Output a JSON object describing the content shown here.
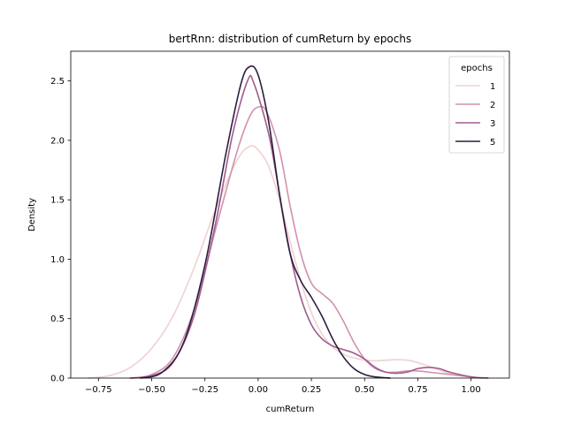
{
  "chart_data": {
    "type": "line",
    "title": "bertRnn: distribution of cumReturn by epochs",
    "xlabel": "cumReturn",
    "ylabel": "Density",
    "xlim": [
      -0.88,
      1.18
    ],
    "ylim": [
      0,
      2.75
    ],
    "xticks": [
      -0.75,
      -0.5,
      -0.25,
      0.0,
      0.25,
      0.5,
      0.75,
      1.0
    ],
    "xtick_labels": [
      "−0.75",
      "−0.50",
      "−0.25",
      "0.00",
      "0.25",
      "0.50",
      "0.75",
      "1.00"
    ],
    "yticks": [
      0.0,
      0.5,
      1.0,
      1.5,
      2.0,
      2.5
    ],
    "ytick_labels": [
      "0.0",
      "0.5",
      "1.0",
      "1.5",
      "2.0",
      "2.5"
    ],
    "grid": false,
    "legend": {
      "title": "epochs",
      "position": "top-right"
    },
    "series": [
      {
        "name": "1",
        "color": "#efd1d1",
        "points": [
          [
            -0.8,
            0.0
          ],
          [
            -0.7,
            0.02
          ],
          [
            -0.6,
            0.09
          ],
          [
            -0.5,
            0.25
          ],
          [
            -0.4,
            0.52
          ],
          [
            -0.3,
            0.93
          ],
          [
            -0.2,
            1.42
          ],
          [
            -0.1,
            1.83
          ],
          [
            -0.04,
            1.95
          ],
          [
            0.0,
            1.92
          ],
          [
            0.05,
            1.78
          ],
          [
            0.1,
            1.5
          ],
          [
            0.15,
            1.15
          ],
          [
            0.2,
            0.82
          ],
          [
            0.25,
            0.55
          ],
          [
            0.3,
            0.37
          ],
          [
            0.35,
            0.26
          ],
          [
            0.4,
            0.2
          ],
          [
            0.45,
            0.17
          ],
          [
            0.5,
            0.15
          ],
          [
            0.55,
            0.145
          ],
          [
            0.6,
            0.15
          ],
          [
            0.65,
            0.155
          ],
          [
            0.7,
            0.15
          ],
          [
            0.75,
            0.13
          ],
          [
            0.8,
            0.1
          ],
          [
            0.9,
            0.04
          ],
          [
            1.0,
            0.01
          ],
          [
            1.08,
            0.0
          ]
        ]
      },
      {
        "name": "2",
        "color": "#d291af",
        "points": [
          [
            -0.6,
            0.0
          ],
          [
            -0.5,
            0.03
          ],
          [
            -0.4,
            0.17
          ],
          [
            -0.3,
            0.58
          ],
          [
            -0.2,
            1.25
          ],
          [
            -0.1,
            1.9
          ],
          [
            -0.04,
            2.2
          ],
          [
            0.0,
            2.28
          ],
          [
            0.04,
            2.24
          ],
          [
            0.1,
            1.92
          ],
          [
            0.15,
            1.45
          ],
          [
            0.2,
            1.05
          ],
          [
            0.25,
            0.8
          ],
          [
            0.3,
            0.71
          ],
          [
            0.35,
            0.63
          ],
          [
            0.4,
            0.48
          ],
          [
            0.45,
            0.3
          ],
          [
            0.5,
            0.16
          ],
          [
            0.55,
            0.08
          ],
          [
            0.6,
            0.05
          ],
          [
            0.65,
            0.05
          ],
          [
            0.7,
            0.06
          ],
          [
            0.75,
            0.06
          ],
          [
            0.8,
            0.05
          ],
          [
            0.9,
            0.03
          ],
          [
            1.0,
            0.01
          ],
          [
            1.05,
            0.0
          ]
        ]
      },
      {
        "name": "3",
        "color": "#a15b8e",
        "points": [
          [
            -0.6,
            0.0
          ],
          [
            -0.5,
            0.02
          ],
          [
            -0.4,
            0.13
          ],
          [
            -0.3,
            0.53
          ],
          [
            -0.2,
            1.3
          ],
          [
            -0.12,
            2.05
          ],
          [
            -0.05,
            2.5
          ],
          [
            -0.02,
            2.48
          ],
          [
            0.05,
            2.05
          ],
          [
            0.1,
            1.55
          ],
          [
            0.15,
            1.05
          ],
          [
            0.2,
            0.68
          ],
          [
            0.25,
            0.45
          ],
          [
            0.3,
            0.33
          ],
          [
            0.35,
            0.27
          ],
          [
            0.4,
            0.24
          ],
          [
            0.45,
            0.21
          ],
          [
            0.5,
            0.16
          ],
          [
            0.55,
            0.09
          ],
          [
            0.6,
            0.05
          ],
          [
            0.65,
            0.04
          ],
          [
            0.7,
            0.05
          ],
          [
            0.75,
            0.08
          ],
          [
            0.8,
            0.09
          ],
          [
            0.85,
            0.08
          ],
          [
            0.9,
            0.05
          ],
          [
            1.0,
            0.01
          ],
          [
            1.08,
            0.0
          ]
        ]
      },
      {
        "name": "5",
        "color": "#2c1e3e",
        "points": [
          [
            -0.55,
            0.0
          ],
          [
            -0.45,
            0.05
          ],
          [
            -0.35,
            0.3
          ],
          [
            -0.25,
            0.95
          ],
          [
            -0.15,
            1.9
          ],
          [
            -0.08,
            2.48
          ],
          [
            -0.04,
            2.62
          ],
          [
            0.0,
            2.55
          ],
          [
            0.05,
            2.15
          ],
          [
            0.1,
            1.55
          ],
          [
            0.15,
            1.05
          ],
          [
            0.2,
            0.82
          ],
          [
            0.25,
            0.68
          ],
          [
            0.3,
            0.52
          ],
          [
            0.35,
            0.33
          ],
          [
            0.4,
            0.18
          ],
          [
            0.45,
            0.08
          ],
          [
            0.5,
            0.03
          ],
          [
            0.55,
            0.01
          ],
          [
            0.62,
            0.0
          ]
        ]
      }
    ]
  }
}
